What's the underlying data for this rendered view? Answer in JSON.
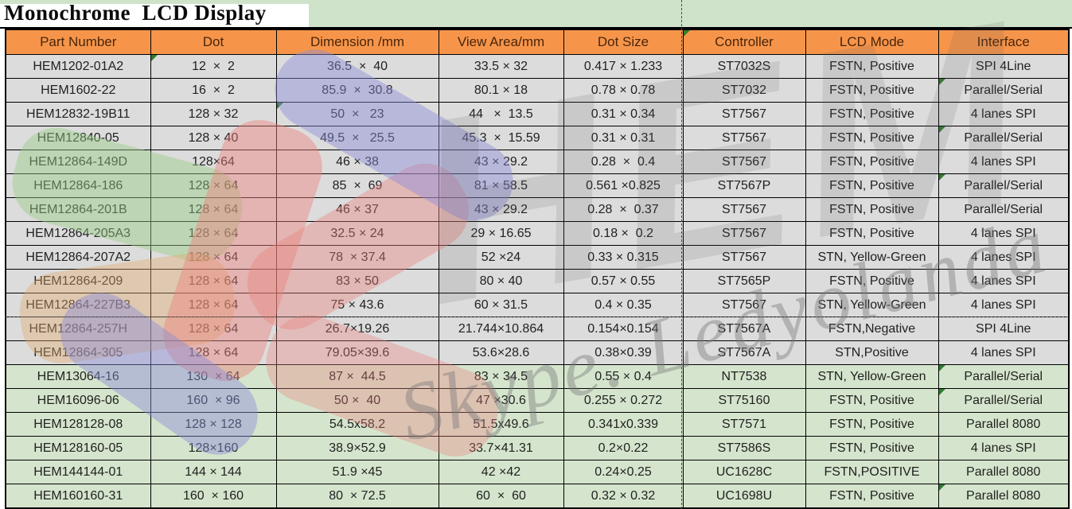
{
  "title": "Monochrome  LCD Display",
  "watermark": {
    "skype_text": "Skype. Ledyolanda",
    "logo_letters": "HEM"
  },
  "colors": {
    "header_fill": "#f6954a",
    "header_text": "#4a250a",
    "gray_row_fill": "#dcdcdc",
    "green_row_fill": "#d5e5cd",
    "top_band_fill": "#cfe3ca",
    "flag_green": "#2f7d31",
    "border": "#000000"
  },
  "table": {
    "columns": [
      "Part Number",
      "Dot",
      "Dimension /mm",
      "View Area/mm",
      "Dot Size",
      "Controller",
      "LCD Mode",
      "Interface"
    ],
    "rows": [
      [
        "HEM1202-01A2",
        "12  ×  2",
        "36.5  ×  40",
        "33.5 × 32",
        "0.417 × 1.233",
        "ST7032S",
        "FSTN, Positive",
        "SPI 4Line"
      ],
      [
        "HEM1602-22",
        "16  ×  2",
        "85.9  ×  30.8",
        "80.1 × 18",
        "0.78 × 0.78",
        "ST7032",
        "FSTN, Positive",
        "Parallel/Serial"
      ],
      [
        "HEM12832-19B11",
        "128 × 32",
        "50  ×   23",
        "44   ×  13.5",
        "0.31 × 0.34",
        "ST7567",
        "FSTN, Positive",
        "4 lanes SPI"
      ],
      [
        "HEM12840-05",
        "128 × 40",
        "49.5  ×   25.5",
        "45.3  ×  15.59",
        "0.31 × 0.31",
        "ST7567",
        "FSTN, Positive",
        "Parallel/Serial"
      ],
      [
        "HEM12864-149D",
        "128×64",
        "46 × 38",
        "43 × 29.2",
        "0.28  ×  0.4",
        "ST7567",
        "FSTN, Positive",
        "4 lanes SPI"
      ],
      [
        "HEM12864-186",
        "128 × 64",
        "85  ×  69",
        "81 × 58.5",
        "0.561 ×0.825",
        "ST7567P",
        "FSTN, Positive",
        "Parallel/Serial"
      ],
      [
        "HEM12864-201B",
        "128 × 64",
        "46 × 37",
        "43 × 29.2",
        "0.28  ×  0.37",
        "ST7567",
        "FSTN, Positive",
        "Parallel/Serial"
      ],
      [
        "HEM12864-205A3",
        "128 × 64",
        "32.5 × 24",
        "29 × 16.65",
        "0.18 ×  0.2",
        "ST7567",
        "FSTN, Positive",
        "4 lanes SPI"
      ],
      [
        "HEM12864-207A2",
        "128 × 64",
        "78  × 37.4",
        "52 ×24",
        "0.33 × 0.315",
        "ST7567",
        "STN, Yellow-Green",
        "4 lanes SPI"
      ],
      [
        "HEM12864-209",
        "128 × 64",
        "83 × 50",
        "80 × 40",
        "0.57 × 0.55",
        "ST7565P",
        "FSTN, Positive",
        "4 lanes SPI"
      ],
      [
        "HEM12864-227B3",
        "128 × 64",
        "75 × 43.6",
        "60 × 31.5",
        "0.4 × 0.35",
        "ST7567",
        "STN, Yellow-Green",
        "4 lanes SPI"
      ],
      [
        "HEM12864-257H",
        "128 × 64",
        "26.7×19.26",
        "21.744×10.864",
        "0.154×0.154",
        "ST7567A",
        "FSTN,Negative",
        "SPI 4Line"
      ],
      [
        "HEM12864-305",
        "128 × 64",
        "79.05×39.6",
        "53.6×28.6",
        "0.38×0.39",
        "ST7567A",
        "STN,Positive",
        "4 lanes SPI"
      ],
      [
        "HEM13064-16",
        "130  × 64",
        "87 ×  44.5",
        "83 × 34.5",
        "0.55 × 0.4",
        "NT7538",
        "STN, Yellow-Green",
        "Parallel/Serial"
      ],
      [
        "HEM16096-06",
        "160  × 96",
        "50 ×  40",
        "47 ×30.6",
        "0.255 × 0.272",
        "ST75160",
        "FSTN, Positive",
        "Parallel/Serial"
      ],
      [
        "HEM128128-08",
        "128 × 128",
        "54.5x58.2",
        "51.5x49.6",
        "0.341x0.339",
        "ST7571",
        "FSTN, Positive",
        "Parallel 8080"
      ],
      [
        "HEM128160-05",
        "128×160",
        "38.9×52.9",
        "33.7×41.31",
        "0.2×0.22",
        "ST7586S",
        "FSTN, Positive",
        "4 lanes SPI"
      ],
      [
        "HEM144144-01",
        "144 × 144",
        "51.9 ×45",
        "42 ×42",
        "0.24×0.25",
        "UC1628C",
        "FSTN,POSITIVE",
        "Parallel 8080"
      ],
      [
        "HEM160160-31",
        "160  × 160",
        "80  × 72.5",
        "60  ×  60",
        "0.32 × 0.32",
        "UC1698U",
        "FSTN, Positive",
        "Parallel 8080"
      ]
    ],
    "row_fills": [
      "gray",
      "gray",
      "gray",
      "gray",
      "gray",
      "gray",
      "gray",
      "gray",
      "gray",
      "gray",
      "gray",
      "gray",
      "gray",
      "green",
      "green",
      "green",
      "green",
      "green",
      "green"
    ],
    "flags": [
      {
        "row": -1,
        "col": 5
      },
      {
        "row": 0,
        "col": 1
      },
      {
        "row": 2,
        "col": 2
      },
      {
        "row": 1,
        "col": 7
      },
      {
        "row": 3,
        "col": 7
      },
      {
        "row": 5,
        "col": 7
      },
      {
        "row": 13,
        "col": 7
      },
      {
        "row": 14,
        "col": 7
      },
      {
        "row": 18,
        "col": 7
      }
    ]
  }
}
